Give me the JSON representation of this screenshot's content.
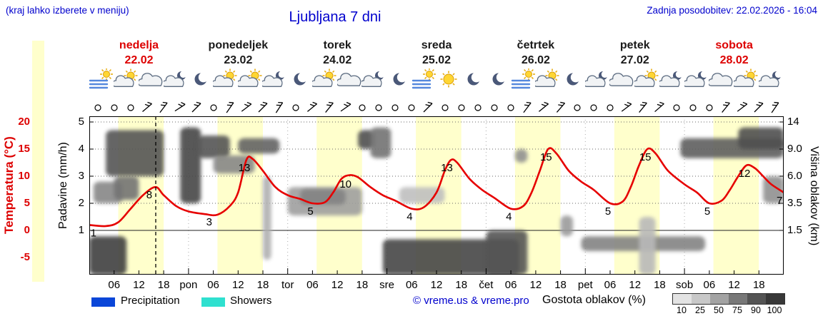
{
  "header": {
    "hint": "(kraj lahko izberete v meniju)",
    "title": "Ljubljana 7 dni",
    "updated": "Zadnja posodobitev: 22.02.2026 - 16:04"
  },
  "days": [
    {
      "name": "nedelja",
      "date": "22.02",
      "color": "#dd0000",
      "icons": [
        "fog-sun",
        "sun-cloud",
        "cloud",
        "moon-cloud"
      ]
    },
    {
      "name": "ponedeljek",
      "date": "23.02",
      "color": "#1a1a1a",
      "icons": [
        "moon",
        "sun-cloud",
        "sun-cloud",
        "moon-cloud"
      ]
    },
    {
      "name": "torek",
      "date": "24.02",
      "color": "#1a1a1a",
      "icons": [
        "moon",
        "sun-cloud",
        "cloud",
        "moon-cloud"
      ]
    },
    {
      "name": "sreda",
      "date": "25.02",
      "color": "#1a1a1a",
      "icons": [
        "moon",
        "fog-sun",
        "sun",
        "moon"
      ]
    },
    {
      "name": "četrtek",
      "date": "26.02",
      "color": "#1a1a1a",
      "icons": [
        "moon",
        "fog-sun",
        "sun-cloud",
        "moon"
      ]
    },
    {
      "name": "petek",
      "date": "27.02",
      "color": "#1a1a1a",
      "icons": [
        "moon-cloud",
        "cloud",
        "sun-cloud",
        "moon-cloud"
      ]
    },
    {
      "name": "sobota",
      "date": "28.02",
      "color": "#dd0000",
      "icons": [
        "moon-cloud",
        "cloud",
        "sun-cloud",
        "moon-cloud"
      ]
    }
  ],
  "axes": {
    "temp_label": "Temperatura (°C)",
    "temp_ticks": [
      20,
      15,
      10,
      5,
      0,
      -5
    ],
    "precip_label": "Padavine (mm/h)",
    "precip_ticks": [
      5,
      4,
      3,
      2,
      1
    ],
    "cloud_label": "Višina oblakov (km)",
    "cloud_ticks": [
      "14",
      "9.0",
      "6.0",
      "3.5",
      "1.5"
    ]
  },
  "time_axis": [
    [
      6,
      "06"
    ],
    [
      12,
      "12"
    ],
    [
      18,
      "18"
    ],
    [
      24,
      "pon"
    ],
    [
      30,
      "06"
    ],
    [
      36,
      "12"
    ],
    [
      42,
      "18"
    ],
    [
      48,
      "tor"
    ],
    [
      54,
      "06"
    ],
    [
      60,
      "12"
    ],
    [
      66,
      "18"
    ],
    [
      72,
      "sre"
    ],
    [
      78,
      "06"
    ],
    [
      84,
      "12"
    ],
    [
      90,
      "18"
    ],
    [
      96,
      "čet"
    ],
    [
      102,
      "06"
    ],
    [
      108,
      "12"
    ],
    [
      114,
      "18"
    ],
    [
      120,
      "pet"
    ],
    [
      126,
      "06"
    ],
    [
      132,
      "12"
    ],
    [
      138,
      "18"
    ],
    [
      144,
      "sob"
    ],
    [
      150,
      "06"
    ],
    [
      156,
      "12"
    ],
    [
      162,
      "18"
    ]
  ],
  "legend": {
    "precipitation": {
      "label": "Precipitation",
      "color": "#0a46d8"
    },
    "showers": {
      "label": "Showers",
      "color": "#2fe0cf"
    },
    "credit": "© vreme.us & vreme.pro",
    "cloud_density": {
      "label": "Gostota oblakov (%)",
      "steps": [
        [
          "10",
          "#e3e3e3"
        ],
        [
          "25",
          "#c8c8c8"
        ],
        [
          "50",
          "#a3a3a3"
        ],
        [
          "75",
          "#787878"
        ],
        [
          "90",
          "#545454"
        ],
        [
          "100",
          "#383838"
        ]
      ]
    }
  },
  "chart_data": {
    "type": "line",
    "title": "Ljubljana 7 dni",
    "x_axis": {
      "unit": "hour",
      "total_hours": 168,
      "start_day": "nedelja 22.02"
    },
    "temp_axis": {
      "label": "Temperatura (°C)",
      "ticks": [
        20,
        15,
        10,
        5,
        0,
        -5
      ]
    },
    "precip_axis": {
      "label": "Padavine (mm/h)",
      "ticks": [
        5,
        4,
        3,
        2,
        1
      ]
    },
    "cloud_axis": {
      "label": "Višina oblakov (km)",
      "ticks": [
        14,
        9.0,
        6.0,
        3.5,
        1.5
      ]
    },
    "now_hour": 16.07,
    "day_band_hours": [
      7,
      18
    ],
    "colors": {
      "day_band": "#ffffcc",
      "temperature": "#e60000"
    },
    "temperature_points": [
      [
        0,
        1
      ],
      [
        4,
        0.8
      ],
      [
        7,
        1.5
      ],
      [
        10,
        4
      ],
      [
        13,
        6.5
      ],
      [
        16,
        8
      ],
      [
        18,
        6.5
      ],
      [
        21,
        4.5
      ],
      [
        24,
        3.5
      ],
      [
        28,
        3
      ],
      [
        31,
        2.9
      ],
      [
        34,
        4.5
      ],
      [
        36,
        7
      ],
      [
        38,
        13
      ],
      [
        39.5,
        13.2
      ],
      [
        42,
        11
      ],
      [
        45,
        8
      ],
      [
        48,
        6.5
      ],
      [
        51,
        5.8
      ],
      [
        54,
        5
      ],
      [
        57,
        5.2
      ],
      [
        59,
        7
      ],
      [
        61,
        9.5
      ],
      [
        63,
        10.2
      ],
      [
        65,
        9.8
      ],
      [
        68,
        8
      ],
      [
        71,
        6.5
      ],
      [
        74,
        5.5
      ],
      [
        78,
        4
      ],
      [
        81,
        4.3
      ],
      [
        84,
        7
      ],
      [
        86,
        11
      ],
      [
        87.5,
        13
      ],
      [
        89,
        12.5
      ],
      [
        92,
        9.5
      ],
      [
        95,
        7.5
      ],
      [
        98,
        6
      ],
      [
        102,
        4
      ],
      [
        105,
        4.5
      ],
      [
        107,
        7
      ],
      [
        109,
        11
      ],
      [
        111,
        15
      ],
      [
        113,
        14.2
      ],
      [
        116,
        11
      ],
      [
        119,
        9
      ],
      [
        122,
        7.5
      ],
      [
        126,
        5
      ],
      [
        129,
        5.3
      ],
      [
        131,
        8
      ],
      [
        133,
        12
      ],
      [
        135,
        15
      ],
      [
        137,
        14.2
      ],
      [
        140,
        11
      ],
      [
        144,
        8.5
      ],
      [
        147,
        7
      ],
      [
        150,
        5
      ],
      [
        153,
        5.5
      ],
      [
        155,
        7.5
      ],
      [
        157,
        10
      ],
      [
        159,
        12
      ],
      [
        161,
        11.5
      ],
      [
        163,
        10
      ],
      [
        165,
        8.5
      ],
      [
        168,
        7
      ]
    ],
    "temp_labels": [
      [
        1,
        1
      ],
      [
        14.5,
        8
      ],
      [
        29,
        3
      ],
      [
        37.5,
        13
      ],
      [
        53.5,
        5
      ],
      [
        62,
        10
      ],
      [
        77.5,
        4
      ],
      [
        86.5,
        13
      ],
      [
        101.5,
        4
      ],
      [
        110.5,
        15
      ],
      [
        125.5,
        5
      ],
      [
        134.5,
        15
      ],
      [
        149.5,
        5
      ],
      [
        158.5,
        12
      ],
      [
        167,
        7
      ]
    ],
    "clouds": [
      [
        0,
        9,
        0,
        1.3,
        95
      ],
      [
        1,
        8,
        3.5,
        5.5,
        60
      ],
      [
        4,
        18,
        6,
        12.5,
        85
      ],
      [
        6,
        12,
        3.8,
        6,
        70
      ],
      [
        22,
        27,
        3.5,
        13,
        92
      ],
      [
        26,
        34,
        8,
        11.5,
        85
      ],
      [
        30,
        40,
        6.3,
        8.3,
        60
      ],
      [
        36,
        46,
        8.5,
        11,
        78
      ],
      [
        42,
        44,
        0.5,
        6,
        40
      ],
      [
        48,
        66,
        2.6,
        5,
        48
      ],
      [
        51,
        62,
        3.4,
        4.8,
        62
      ],
      [
        65,
        69,
        9,
        12.5,
        88
      ],
      [
        68,
        73,
        8,
        13,
        70
      ],
      [
        71,
        104,
        0,
        1.2,
        92
      ],
      [
        75,
        86,
        3.5,
        5,
        32
      ],
      [
        96,
        106,
        0,
        1.5,
        85
      ],
      [
        103,
        106,
        7.5,
        9,
        55
      ],
      [
        114,
        117,
        1.3,
        2.6,
        50
      ],
      [
        119,
        149,
        0.8,
        1.3,
        62
      ],
      [
        133,
        137,
        0,
        2.5,
        35
      ],
      [
        143,
        168,
        8,
        11,
        80
      ],
      [
        157,
        168,
        9,
        13,
        88
      ],
      [
        163,
        168,
        3.5,
        6,
        55
      ]
    ],
    "wind": [
      "c",
      "c",
      "c",
      5,
      -8,
      12,
      0,
      "c",
      -10,
      8,
      0,
      -12,
      "c",
      6,
      -6,
      10,
      "c",
      "c",
      "c",
      "c",
      0,
      "c",
      "c",
      "c",
      "c",
      "c",
      -8,
      6,
      -4,
      "c",
      "c",
      "c",
      8,
      -6,
      4,
      "c",
      "c",
      "c",
      -6,
      8,
      0,
      -10
    ]
  }
}
